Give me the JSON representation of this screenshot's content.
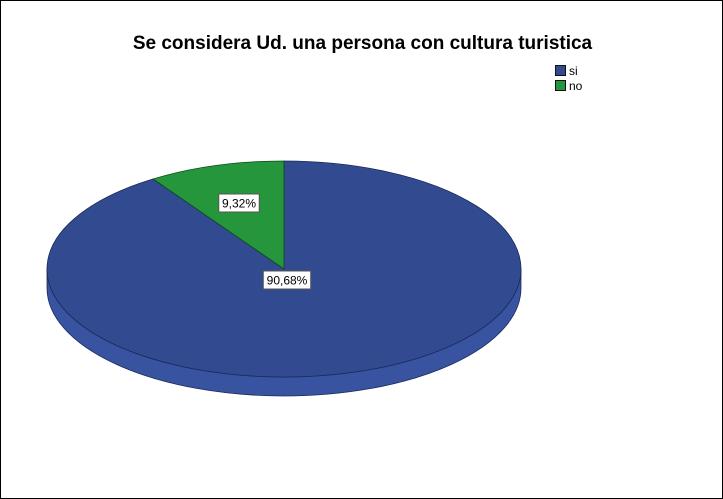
{
  "chart_data": {
    "type": "pie",
    "title": "Se considera Ud. una persona con cultura turistica",
    "categories": [
      "si",
      "no"
    ],
    "values": [
      90.68,
      9.32
    ],
    "labels": [
      "90,68%",
      "9,32%"
    ],
    "colors": [
      "#324a8f",
      "#26963c"
    ],
    "legend": {
      "position": "top-right",
      "items": [
        {
          "label": "si",
          "color": "#324a8f"
        },
        {
          "label": "no",
          "color": "#26963c"
        }
      ]
    },
    "style": "3d"
  }
}
